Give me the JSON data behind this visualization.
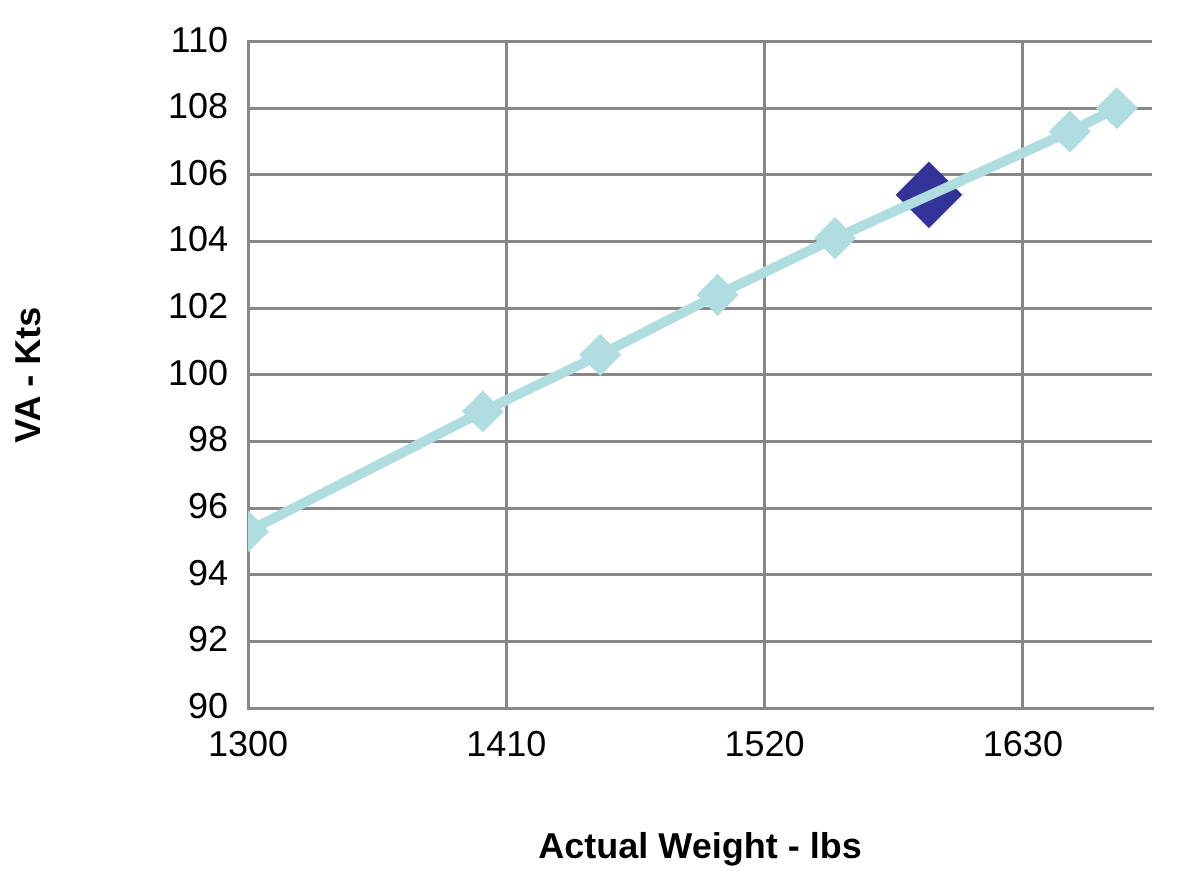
{
  "chart_data": {
    "type": "line",
    "xlabel": "Actual Weight - lbs",
    "ylabel": "VA - Kts",
    "series": [
      {
        "color": "#b0dde0",
        "x": [
          1300,
          1400,
          1450,
          1500,
          1550,
          1650,
          1670
        ],
        "values": [
          95.3,
          98.9,
          100.6,
          102.4,
          104.1,
          107.3,
          108.0
        ],
        "marker": "diamond"
      },
      {
        "type": "scatter",
        "color": "#333399",
        "x": [
          1590
        ],
        "values": [
          105.4
        ],
        "marker": "diamond"
      }
    ],
    "xlim": [
      1300,
      1685
    ],
    "xticks": [
      1300,
      1410,
      1520,
      1630
    ],
    "ylim": [
      90,
      110
    ],
    "yticks": [
      90,
      92,
      94,
      96,
      98,
      100,
      102,
      104,
      106,
      108,
      110
    ],
    "grid": true,
    "legend": false
  }
}
